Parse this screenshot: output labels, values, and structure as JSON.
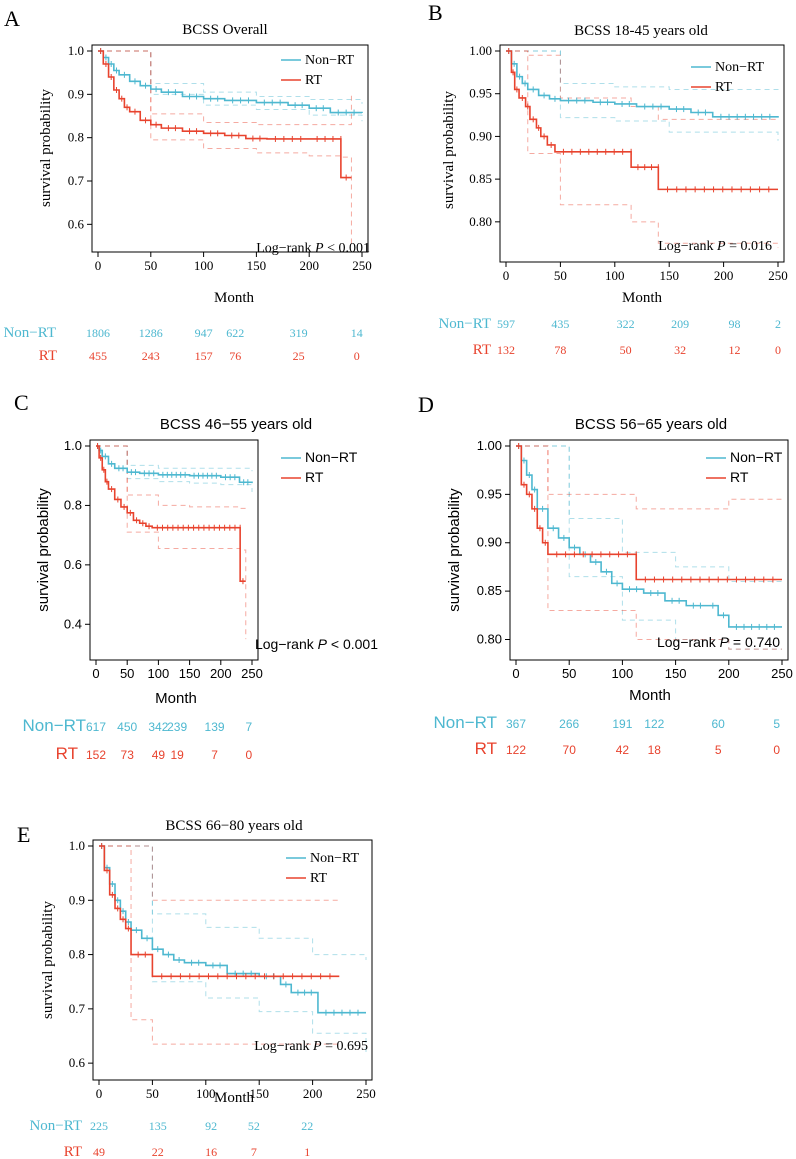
{
  "colors": {
    "non_rt": "#4EB8D0",
    "rt": "#E8432E",
    "axis": "#000000"
  },
  "legend": {
    "non_rt": "Non−RT",
    "rt": "RT"
  },
  "risk_labels": {
    "non_rt": "Non−RT",
    "rt": "RT"
  },
  "chart_data": [
    {
      "type": "line",
      "panel": "A",
      "title": "BCSS Overall",
      "xlabel": "Month",
      "ylabel": "survival probability",
      "xlim": [
        0,
        250
      ],
      "ylim": [
        0.55,
        1.0
      ],
      "xticks": [
        0,
        50,
        100,
        150,
        200,
        250
      ],
      "yticks": [
        "0.6",
        "0.7",
        "0.8",
        "0.9",
        "1.0"
      ],
      "annotation": {
        "prefix": "Log−rank ",
        "p": "P",
        "rest": " < 0.001"
      },
      "legend_position": "top-right",
      "series": [
        {
          "name": "Non-RT",
          "x": [
            0,
            5,
            10,
            15,
            20,
            30,
            40,
            50,
            60,
            80,
            100,
            120,
            150,
            180,
            200,
            220,
            250
          ],
          "y": [
            1.0,
            0.985,
            0.97,
            0.955,
            0.945,
            0.93,
            0.92,
            0.912,
            0.905,
            0.895,
            0.89,
            0.886,
            0.881,
            0.875,
            0.868,
            0.858,
            0.857
          ]
        },
        {
          "name": "RT",
          "x": [
            0,
            5,
            10,
            15,
            20,
            25,
            30,
            40,
            50,
            60,
            80,
            100,
            120,
            140,
            160,
            200,
            230,
            230,
            240
          ],
          "y": [
            1.0,
            0.97,
            0.94,
            0.91,
            0.89,
            0.87,
            0.86,
            0.84,
            0.83,
            0.822,
            0.815,
            0.81,
            0.805,
            0.798,
            0.797,
            0.797,
            0.797,
            0.708,
            0.708
          ]
        }
      ],
      "ci": [
        {
          "name": "Non-RT upper",
          "x": [
            0,
            50,
            100,
            150,
            200,
            250
          ],
          "y": [
            1.0,
            0.925,
            0.905,
            0.895,
            0.888,
            0.878
          ]
        },
        {
          "name": "Non-RT lower",
          "x": [
            0,
            50,
            100,
            150,
            200,
            250
          ],
          "y": [
            1.0,
            0.9,
            0.875,
            0.865,
            0.852,
            0.838
          ]
        },
        {
          "name": "RT upper",
          "x": [
            0,
            50,
            100,
            150,
            200,
            240
          ],
          "y": [
            1.0,
            0.855,
            0.835,
            0.83,
            0.83,
            0.9
          ]
        },
        {
          "name": "RT lower",
          "x": [
            0,
            50,
            100,
            150,
            200,
            230,
            240
          ],
          "y": [
            1.0,
            0.795,
            0.775,
            0.765,
            0.758,
            0.755,
            0.55
          ]
        }
      ],
      "risk_table": {
        "times": [
          0,
          50,
          100,
          130,
          190,
          245
        ],
        "non_rt": [
          "1806",
          "1286",
          "947",
          "622",
          "319",
          "14"
        ],
        "rt": [
          "455",
          "243",
          "157",
          "76",
          "25",
          "0"
        ]
      }
    },
    {
      "type": "line",
      "panel": "B",
      "title": "BCSS 18-45 years old",
      "xlabel": "Month",
      "ylabel": "survival probability",
      "xlim": [
        0,
        250
      ],
      "ylim": [
        0.76,
        1.0
      ],
      "xticks": [
        0,
        50,
        100,
        150,
        200,
        250
      ],
      "yticks": [
        "0.80",
        "0.85",
        "0.90",
        "0.95",
        "1.00"
      ],
      "annotation": {
        "prefix": "Log−rank  ",
        "p": "P",
        "rest": " = 0.016"
      },
      "legend_position": "top-right",
      "series": [
        {
          "name": "Non-RT",
          "x": [
            0,
            5,
            10,
            15,
            20,
            30,
            40,
            50,
            80,
            100,
            120,
            150,
            170,
            190,
            250
          ],
          "y": [
            1.0,
            0.985,
            0.97,
            0.962,
            0.955,
            0.948,
            0.944,
            0.942,
            0.94,
            0.938,
            0.935,
            0.932,
            0.928,
            0.923,
            0.922
          ]
        },
        {
          "name": "RT",
          "x": [
            0,
            5,
            8,
            12,
            18,
            22,
            28,
            32,
            38,
            45,
            115,
            115,
            140,
            140,
            250
          ],
          "y": [
            1.0,
            0.975,
            0.955,
            0.945,
            0.935,
            0.92,
            0.91,
            0.9,
            0.89,
            0.882,
            0.882,
            0.864,
            0.864,
            0.838,
            0.838
          ]
        }
      ],
      "ci": [
        {
          "name": "Non-RT upper",
          "x": [
            0,
            50,
            100,
            150,
            250
          ],
          "y": [
            1.0,
            0.962,
            0.958,
            0.955,
            0.95
          ]
        },
        {
          "name": "Non-RT lower",
          "x": [
            0,
            50,
            100,
            150,
            250
          ],
          "y": [
            1.0,
            0.922,
            0.918,
            0.905,
            0.895
          ]
        },
        {
          "name": "RT upper",
          "x": [
            0,
            20,
            50,
            115,
            140,
            250
          ],
          "y": [
            1.0,
            0.995,
            0.945,
            0.935,
            0.92,
            0.92
          ]
        },
        {
          "name": "RT lower",
          "x": [
            0,
            20,
            50,
            115,
            140,
            250
          ],
          "y": [
            1.0,
            0.88,
            0.82,
            0.8,
            0.775,
            0.77
          ]
        }
      ],
      "risk_table": {
        "times": [
          0,
          50,
          110,
          160,
          210,
          250
        ],
        "non_rt": [
          "597",
          "435",
          "322",
          "209",
          "98",
          "2"
        ],
        "rt": [
          "132",
          "78",
          "50",
          "32",
          "12",
          "0"
        ]
      }
    },
    {
      "type": "line",
      "panel": "C",
      "title": "BCSS 46−55 years old",
      "xlabel": "Month",
      "ylabel": "survival probability",
      "xlim": [
        0,
        250
      ],
      "ylim": [
        0.3,
        1.0
      ],
      "xticks": [
        0,
        50,
        100,
        150,
        200,
        250
      ],
      "yticks": [
        "0.4",
        "0.6",
        "0.8",
        "1.0"
      ],
      "annotation": {
        "prefix": "Log−rank ",
        "p": "P",
        "rest": " < 0.001"
      },
      "legend_position": "top-right",
      "series": [
        {
          "name": "Non-RT",
          "x": [
            0,
            5,
            10,
            20,
            30,
            50,
            70,
            100,
            150,
            200,
            230,
            250
          ],
          "y": [
            1.0,
            0.985,
            0.965,
            0.94,
            0.925,
            0.912,
            0.908,
            0.903,
            0.9,
            0.895,
            0.878,
            0.875
          ]
        },
        {
          "name": "RT",
          "x": [
            0,
            5,
            10,
            15,
            20,
            30,
            40,
            50,
            60,
            70,
            80,
            90,
            231,
            231,
            240
          ],
          "y": [
            1.0,
            0.96,
            0.92,
            0.88,
            0.855,
            0.82,
            0.795,
            0.775,
            0.75,
            0.74,
            0.73,
            0.725,
            0.725,
            0.545,
            0.545
          ]
        }
      ],
      "ci": [
        {
          "name": "Non-RT upper",
          "x": [
            0,
            50,
            100,
            150,
            200,
            250
          ],
          "y": [
            1.0,
            0.935,
            0.925,
            0.925,
            0.925,
            0.915
          ]
        },
        {
          "name": "Non-RT lower",
          "x": [
            0,
            50,
            100,
            150,
            200,
            250
          ],
          "y": [
            1.0,
            0.89,
            0.88,
            0.875,
            0.87,
            0.845
          ]
        },
        {
          "name": "RT upper",
          "x": [
            0,
            50,
            100,
            150,
            231,
            240
          ],
          "y": [
            1.0,
            0.835,
            0.8,
            0.795,
            0.79,
            0.78
          ]
        },
        {
          "name": "RT lower",
          "x": [
            0,
            50,
            100,
            150,
            231,
            240
          ],
          "y": [
            1.0,
            0.71,
            0.655,
            0.655,
            0.65,
            0.35
          ]
        }
      ],
      "risk_table": {
        "times": [
          0,
          50,
          100,
          130,
          190,
          245
        ],
        "non_rt": [
          "617",
          "450",
          "342",
          "239",
          "139",
          "7"
        ],
        "rt": [
          "152",
          "73",
          "49",
          "19",
          "7",
          "0"
        ]
      }
    },
    {
      "type": "line",
      "panel": "D",
      "title": "BCSS 56−65 years old",
      "xlabel": "Month",
      "ylabel": "survival probability",
      "xlim": [
        0,
        250
      ],
      "ylim": [
        0.785,
        1.0
      ],
      "xticks": [
        0,
        50,
        100,
        150,
        200,
        250
      ],
      "yticks": [
        "0.80",
        "0.85",
        "0.90",
        "0.95",
        "1.00"
      ],
      "annotation": {
        "prefix": "Log−rank ",
        "p": "P",
        "rest": " = 0.740"
      },
      "legend_position": "top-right",
      "series": [
        {
          "name": "Non-RT",
          "x": [
            0,
            5,
            10,
            15,
            20,
            30,
            40,
            50,
            60,
            70,
            80,
            90,
            100,
            120,
            140,
            160,
            180,
            190,
            200,
            250
          ],
          "y": [
            1.0,
            0.985,
            0.97,
            0.955,
            0.935,
            0.915,
            0.905,
            0.895,
            0.888,
            0.88,
            0.87,
            0.858,
            0.852,
            0.848,
            0.84,
            0.835,
            0.835,
            0.825,
            0.813,
            0.813
          ]
        },
        {
          "name": "RT",
          "x": [
            0,
            5,
            10,
            15,
            20,
            25,
            30,
            113,
            113,
            250
          ],
          "y": [
            1.0,
            0.96,
            0.95,
            0.935,
            0.915,
            0.9,
            0.888,
            0.888,
            0.862,
            0.862
          ]
        }
      ],
      "ci": [
        {
          "name": "Non-RT upper",
          "x": [
            0,
            50,
            100,
            150,
            200,
            250
          ],
          "y": [
            1.0,
            0.925,
            0.89,
            0.875,
            0.86,
            0.86
          ]
        },
        {
          "name": "Non-RT lower",
          "x": [
            0,
            50,
            100,
            150,
            200,
            250
          ],
          "y": [
            1.0,
            0.865,
            0.82,
            0.8,
            0.79,
            0.79
          ]
        },
        {
          "name": "RT upper",
          "x": [
            0,
            30,
            113,
            200,
            250
          ],
          "y": [
            1.0,
            0.95,
            0.935,
            0.945,
            0.945
          ]
        },
        {
          "name": "RT lower",
          "x": [
            0,
            30,
            113,
            200,
            250
          ],
          "y": [
            1.0,
            0.83,
            0.8,
            0.79,
            0.79
          ]
        }
      ],
      "risk_table": {
        "times": [
          0,
          50,
          100,
          130,
          190,
          245
        ],
        "non_rt": [
          "367",
          "266",
          "191",
          "122",
          "60",
          "5"
        ],
        "rt": [
          "122",
          "70",
          "42",
          "18",
          "5",
          "0"
        ]
      }
    },
    {
      "type": "line",
      "panel": "E",
      "title": "BCSS 66−80 years old",
      "xlabel": "Month",
      "ylabel": "survival probability",
      "xlim": [
        0,
        250
      ],
      "ylim": [
        0.58,
        1.0
      ],
      "xticks": [
        0,
        50,
        100,
        150,
        200,
        250
      ],
      "yticks": [
        "0.6",
        "0.7",
        "0.8",
        "0.9",
        "1.0"
      ],
      "annotation": {
        "prefix": "Log−rank  ",
        "p": "P",
        "rest": " = 0.695"
      },
      "legend_position": "top-right",
      "series": [
        {
          "name": "Non-RT",
          "x": [
            0,
            5,
            10,
            15,
            20,
            25,
            30,
            40,
            50,
            60,
            70,
            80,
            100,
            120,
            150,
            170,
            180,
            205,
            250
          ],
          "y": [
            1.0,
            0.96,
            0.93,
            0.9,
            0.88,
            0.86,
            0.845,
            0.83,
            0.81,
            0.8,
            0.79,
            0.785,
            0.78,
            0.765,
            0.76,
            0.745,
            0.73,
            0.693,
            0.693
          ]
        },
        {
          "name": "RT",
          "x": [
            0,
            5,
            10,
            15,
            20,
            25,
            30,
            50,
            225
          ],
          "y": [
            1.0,
            0.955,
            0.91,
            0.885,
            0.865,
            0.848,
            0.8,
            0.76,
            0.76
          ]
        }
      ],
      "ci": [
        {
          "name": "Non-RT upper",
          "x": [
            0,
            50,
            100,
            150,
            200,
            250
          ],
          "y": [
            1.0,
            0.875,
            0.85,
            0.83,
            0.8,
            0.79
          ]
        },
        {
          "name": "Non-RT lower",
          "x": [
            0,
            50,
            100,
            150,
            200,
            250
          ],
          "y": [
            1.0,
            0.75,
            0.72,
            0.695,
            0.655,
            0.62
          ]
        },
        {
          "name": "RT upper",
          "x": [
            0,
            10,
            50,
            150,
            225
          ],
          "y": [
            1.0,
            1.0,
            0.9,
            0.9,
            0.9
          ]
        },
        {
          "name": "RT lower",
          "x": [
            0,
            30,
            50,
            225
          ],
          "y": [
            1.0,
            0.68,
            0.635,
            0.635
          ]
        }
      ],
      "risk_table": {
        "times": [
          0,
          55,
          105,
          145,
          195
        ],
        "non_rt": [
          "225",
          "135",
          "92",
          "52",
          "22"
        ],
        "rt": [
          "49",
          "22",
          "16",
          "7",
          "1"
        ]
      }
    }
  ]
}
